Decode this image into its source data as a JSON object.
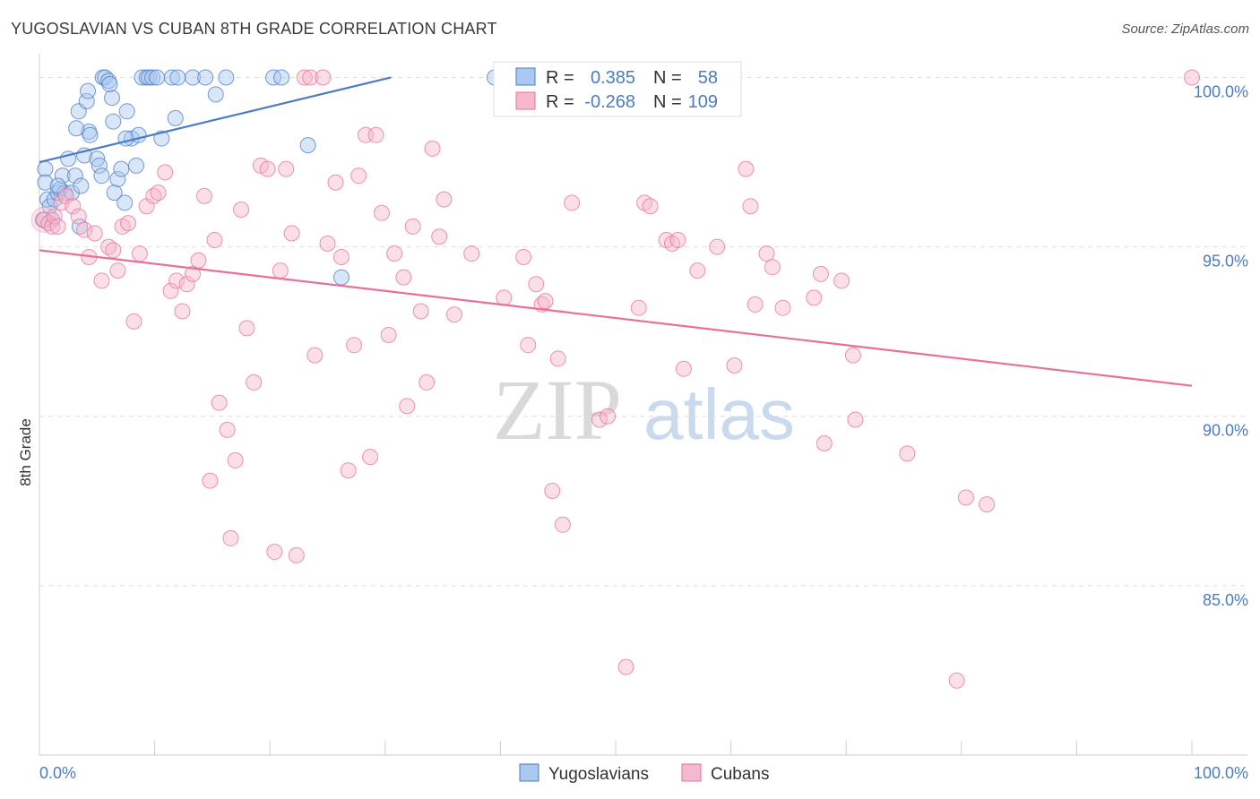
{
  "title": "YUGOSLAVIAN VS CUBAN 8TH GRADE CORRELATION CHART",
  "source": "Source: ZipAtlas.com",
  "colors": {
    "blue": "#4a7cc4",
    "blue_fill": "#aac8f0",
    "pink": "#e8709a",
    "pink_fill": "#f5b8cc",
    "grid": "#dddddd"
  },
  "watermark": {
    "zip": "ZIP",
    "atlas": "atlas"
  },
  "legend": {
    "row1": {
      "r_label": "R =",
      "r_value": "0.385",
      "n_label": "N =",
      "n_value": "58"
    },
    "row2": {
      "r_label": "R =",
      "r_value": "-0.268",
      "n_label": "N =",
      "n_value": "109"
    }
  },
  "chart_data": {
    "type": "scatter",
    "title": "YUGOSLAVIAN VS CUBAN 8TH GRADE CORRELATION CHART",
    "xlabel": "",
    "ylabel": "8th Grade",
    "xlim": [
      0,
      100
    ],
    "ylim": [
      80.0,
      100.7
    ],
    "x_tick_labels": [
      "0.0%",
      "100.0%"
    ],
    "y_ticks": [
      100,
      95,
      90,
      85
    ],
    "y_tick_labels": [
      "100.0%",
      "95.0%",
      "90.0%",
      "85.0%"
    ],
    "series": [
      {
        "name": "Yugoslavians",
        "color": "blue",
        "trend": {
          "x": [
            0,
            30.5
          ],
          "y": [
            97.5,
            100.0
          ]
        },
        "points": [
          [
            0.5,
            97.3
          ],
          [
            0.5,
            96.9
          ],
          [
            0.7,
            96.4
          ],
          [
            0.9,
            96.2
          ],
          [
            1.1,
            95.8
          ],
          [
            0.3,
            95.8
          ],
          [
            1.3,
            96.4
          ],
          [
            1.6,
            96.6
          ],
          [
            1.8,
            96.7
          ],
          [
            2.2,
            96.6
          ],
          [
            2.0,
            97.1
          ],
          [
            1.6,
            96.8
          ],
          [
            2.8,
            96.6
          ],
          [
            2.5,
            97.6
          ],
          [
            3.1,
            97.1
          ],
          [
            3.6,
            96.8
          ],
          [
            3.5,
            95.6
          ],
          [
            3.9,
            97.7
          ],
          [
            4.3,
            98.4
          ],
          [
            4.4,
            98.3
          ],
          [
            3.4,
            99.0
          ],
          [
            4.1,
            99.3
          ],
          [
            4.2,
            99.6
          ],
          [
            3.2,
            98.5
          ],
          [
            5.0,
            97.6
          ],
          [
            5.2,
            97.4
          ],
          [
            5.4,
            97.1
          ],
          [
            6.5,
            96.6
          ],
          [
            6.8,
            97.0
          ],
          [
            7.4,
            96.3
          ],
          [
            7.1,
            97.3
          ],
          [
            8.4,
            97.4
          ],
          [
            8.0,
            98.2
          ],
          [
            8.6,
            98.3
          ],
          [
            7.5,
            98.2
          ],
          [
            6.4,
            98.7
          ],
          [
            6.3,
            99.4
          ],
          [
            7.6,
            99.0
          ],
          [
            5.5,
            100.0
          ],
          [
            5.7,
            100.0
          ],
          [
            6.0,
            99.9
          ],
          [
            6.1,
            99.8
          ],
          [
            8.9,
            100.0
          ],
          [
            9.3,
            100.0
          ],
          [
            9.5,
            100.0
          ],
          [
            9.8,
            100.0
          ],
          [
            10.2,
            100.0
          ],
          [
            11.5,
            100.0
          ],
          [
            12.0,
            100.0
          ],
          [
            13.3,
            100.0
          ],
          [
            14.4,
            100.0
          ],
          [
            15.3,
            99.5
          ],
          [
            16.2,
            100.0
          ],
          [
            20.3,
            100.0
          ],
          [
            21.0,
            100.0
          ],
          [
            10.6,
            98.2
          ],
          [
            11.8,
            98.8
          ],
          [
            23.3,
            98.0
          ],
          [
            26.2,
            94.1
          ],
          [
            39.5,
            100.0
          ]
        ]
      },
      {
        "name": "Cubans",
        "color": "pink",
        "trend": {
          "x": [
            0,
            100
          ],
          "y": [
            94.9,
            90.9
          ]
        },
        "points": [
          [
            0.4,
            95.8
          ],
          [
            0.8,
            95.7
          ],
          [
            1.1,
            95.6
          ],
          [
            1.3,
            95.9
          ],
          [
            1.6,
            95.6
          ],
          [
            1.9,
            96.3
          ],
          [
            2.3,
            96.5
          ],
          [
            2.9,
            96.2
          ],
          [
            3.4,
            95.9
          ],
          [
            3.9,
            95.5
          ],
          [
            4.3,
            94.7
          ],
          [
            4.8,
            95.4
          ],
          [
            5.4,
            94.0
          ],
          [
            6.0,
            95.0
          ],
          [
            6.4,
            94.9
          ],
          [
            6.8,
            94.3
          ],
          [
            7.2,
            95.6
          ],
          [
            7.7,
            95.7
          ],
          [
            8.2,
            92.8
          ],
          [
            8.7,
            94.8
          ],
          [
            9.3,
            96.2
          ],
          [
            9.9,
            96.5
          ],
          [
            10.3,
            96.6
          ],
          [
            10.9,
            97.2
          ],
          [
            11.4,
            93.7
          ],
          [
            11.9,
            94.0
          ],
          [
            12.4,
            93.1
          ],
          [
            12.8,
            93.9
          ],
          [
            13.3,
            94.2
          ],
          [
            13.8,
            94.6
          ],
          [
            14.3,
            96.5
          ],
          [
            14.8,
            88.1
          ],
          [
            15.2,
            95.2
          ],
          [
            15.6,
            90.4
          ],
          [
            16.3,
            89.6
          ],
          [
            16.6,
            86.4
          ],
          [
            17.0,
            88.7
          ],
          [
            17.5,
            96.1
          ],
          [
            18.0,
            92.6
          ],
          [
            18.6,
            91.0
          ],
          [
            19.2,
            97.4
          ],
          [
            19.8,
            97.3
          ],
          [
            20.4,
            86.0
          ],
          [
            20.9,
            94.3
          ],
          [
            21.4,
            97.3
          ],
          [
            21.9,
            95.4
          ],
          [
            22.3,
            85.9
          ],
          [
            23.0,
            100.0
          ],
          [
            23.5,
            100.0
          ],
          [
            23.9,
            91.8
          ],
          [
            24.6,
            100.0
          ],
          [
            25.0,
            95.1
          ],
          [
            25.7,
            96.9
          ],
          [
            26.2,
            94.7
          ],
          [
            26.8,
            88.4
          ],
          [
            27.3,
            92.1
          ],
          [
            27.7,
            97.1
          ],
          [
            28.3,
            98.3
          ],
          [
            28.7,
            88.8
          ],
          [
            29.2,
            98.3
          ],
          [
            29.7,
            96.0
          ],
          [
            30.3,
            92.4
          ],
          [
            30.8,
            94.8
          ],
          [
            31.6,
            94.1
          ],
          [
            31.9,
            90.3
          ],
          [
            32.4,
            95.6
          ],
          [
            33.1,
            93.1
          ],
          [
            33.6,
            91.0
          ],
          [
            34.1,
            97.9
          ],
          [
            34.7,
            95.3
          ],
          [
            35.1,
            96.4
          ],
          [
            36.0,
            93.0
          ],
          [
            37.5,
            94.8
          ],
          [
            40.3,
            93.5
          ],
          [
            42.0,
            94.7
          ],
          [
            42.4,
            92.1
          ],
          [
            43.1,
            93.9
          ],
          [
            43.6,
            93.3
          ],
          [
            43.9,
            93.4
          ],
          [
            44.5,
            87.8
          ],
          [
            45.0,
            91.7
          ],
          [
            45.4,
            86.8
          ],
          [
            46.2,
            96.3
          ],
          [
            48.6,
            89.9
          ],
          [
            49.3,
            90.0
          ],
          [
            50.9,
            82.6
          ],
          [
            52.0,
            93.2
          ],
          [
            52.5,
            96.3
          ],
          [
            53.0,
            96.2
          ],
          [
            54.4,
            95.2
          ],
          [
            54.9,
            95.1
          ],
          [
            55.4,
            95.2
          ],
          [
            55.9,
            91.4
          ],
          [
            57.1,
            94.3
          ],
          [
            58.8,
            95.0
          ],
          [
            60.3,
            91.5
          ],
          [
            61.3,
            97.3
          ],
          [
            61.7,
            96.2
          ],
          [
            62.1,
            93.3
          ],
          [
            63.1,
            94.8
          ],
          [
            63.6,
            94.4
          ],
          [
            64.5,
            93.2
          ],
          [
            67.2,
            93.5
          ],
          [
            67.8,
            94.2
          ],
          [
            68.1,
            89.2
          ],
          [
            69.6,
            94.0
          ],
          [
            70.6,
            91.8
          ],
          [
            70.8,
            89.9
          ],
          [
            75.3,
            88.9
          ],
          [
            80.4,
            87.6
          ],
          [
            79.6,
            82.2
          ],
          [
            82.2,
            87.4
          ],
          [
            100.0,
            100.0
          ]
        ]
      }
    ]
  }
}
